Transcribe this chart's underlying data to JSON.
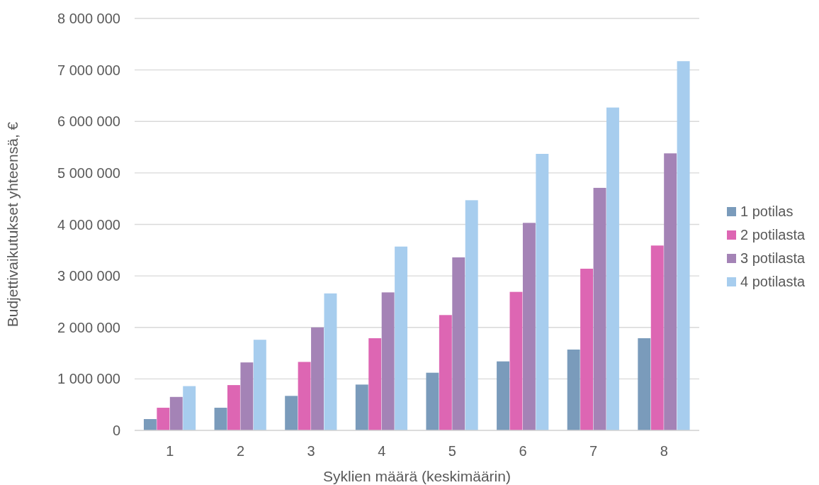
{
  "chart_data": {
    "type": "bar",
    "xlabel": "Syklien määrä (keskimäärin)",
    "ylabel": "Budjettivaikutukset yhteensä, €",
    "categories": [
      "1",
      "2",
      "3",
      "4",
      "5",
      "6",
      "7",
      "8"
    ],
    "series": [
      {
        "name": "1 potilas",
        "color": "#7a9bbb",
        "values": [
          220000,
          440000,
          670000,
          890000,
          1120000,
          1340000,
          1570000,
          1790000
        ]
      },
      {
        "name": "2 potilasta",
        "color": "#dd66b3",
        "values": [
          440000,
          880000,
          1330000,
          1790000,
          2240000,
          2690000,
          3140000,
          3590000
        ]
      },
      {
        "name": "3 potilasta",
        "color": "#a483b6",
        "values": [
          650000,
          1320000,
          2000000,
          2680000,
          3360000,
          4030000,
          4710000,
          5380000
        ]
      },
      {
        "name": "4 potilasta",
        "color": "#a7cdee",
        "values": [
          860000,
          1760000,
          2660000,
          3570000,
          4470000,
          5370000,
          6270000,
          7170000
        ]
      }
    ],
    "ylim": [
      0,
      8000000
    ],
    "yticks": [
      {
        "value": 0,
        "label": "0"
      },
      {
        "value": 1000000,
        "label": "1 000 000"
      },
      {
        "value": 2000000,
        "label": "2 000 000"
      },
      {
        "value": 3000000,
        "label": "3 000 000"
      },
      {
        "value": 4000000,
        "label": "4 000 000"
      },
      {
        "value": 5000000,
        "label": "5 000 000"
      },
      {
        "value": 6000000,
        "label": "6 000 000"
      },
      {
        "value": 7000000,
        "label": "7 000 000"
      },
      {
        "value": 8000000,
        "label": "8 000 000"
      }
    ],
    "grid": "y",
    "legend": "right"
  }
}
